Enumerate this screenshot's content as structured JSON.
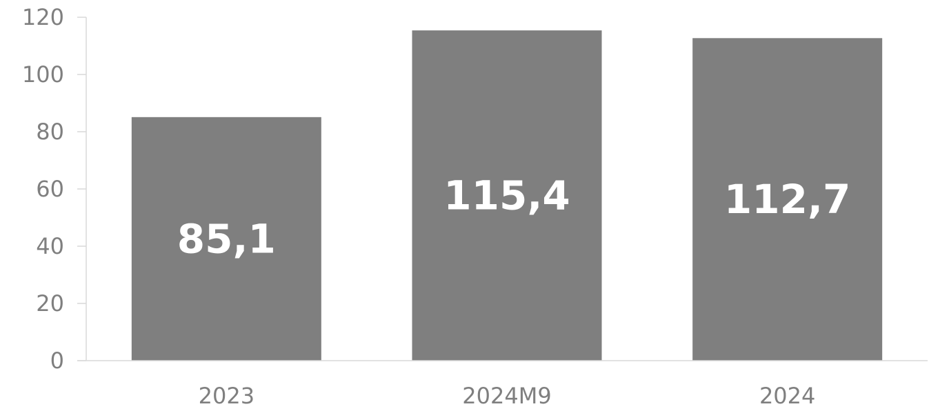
{
  "chart_data": {
    "type": "bar",
    "categories": [
      "2023",
      "2024M9",
      "2024"
    ],
    "values": [
      85.1,
      115.4,
      112.7
    ],
    "data_labels": [
      "85,1",
      "115,4",
      "112,7"
    ],
    "ylim": [
      0,
      120
    ],
    "yticks": [
      0,
      20,
      40,
      60,
      80,
      100,
      120
    ],
    "ytick_labels": [
      "0",
      "20",
      "40",
      "60",
      "80",
      "100",
      "120"
    ],
    "bar_color": "#7f7f7f",
    "label_color": "#ffffff",
    "axis_color": "#d9d9d9",
    "tick_label_color": "#7f7f7f",
    "grid": false,
    "legend": "none"
  }
}
